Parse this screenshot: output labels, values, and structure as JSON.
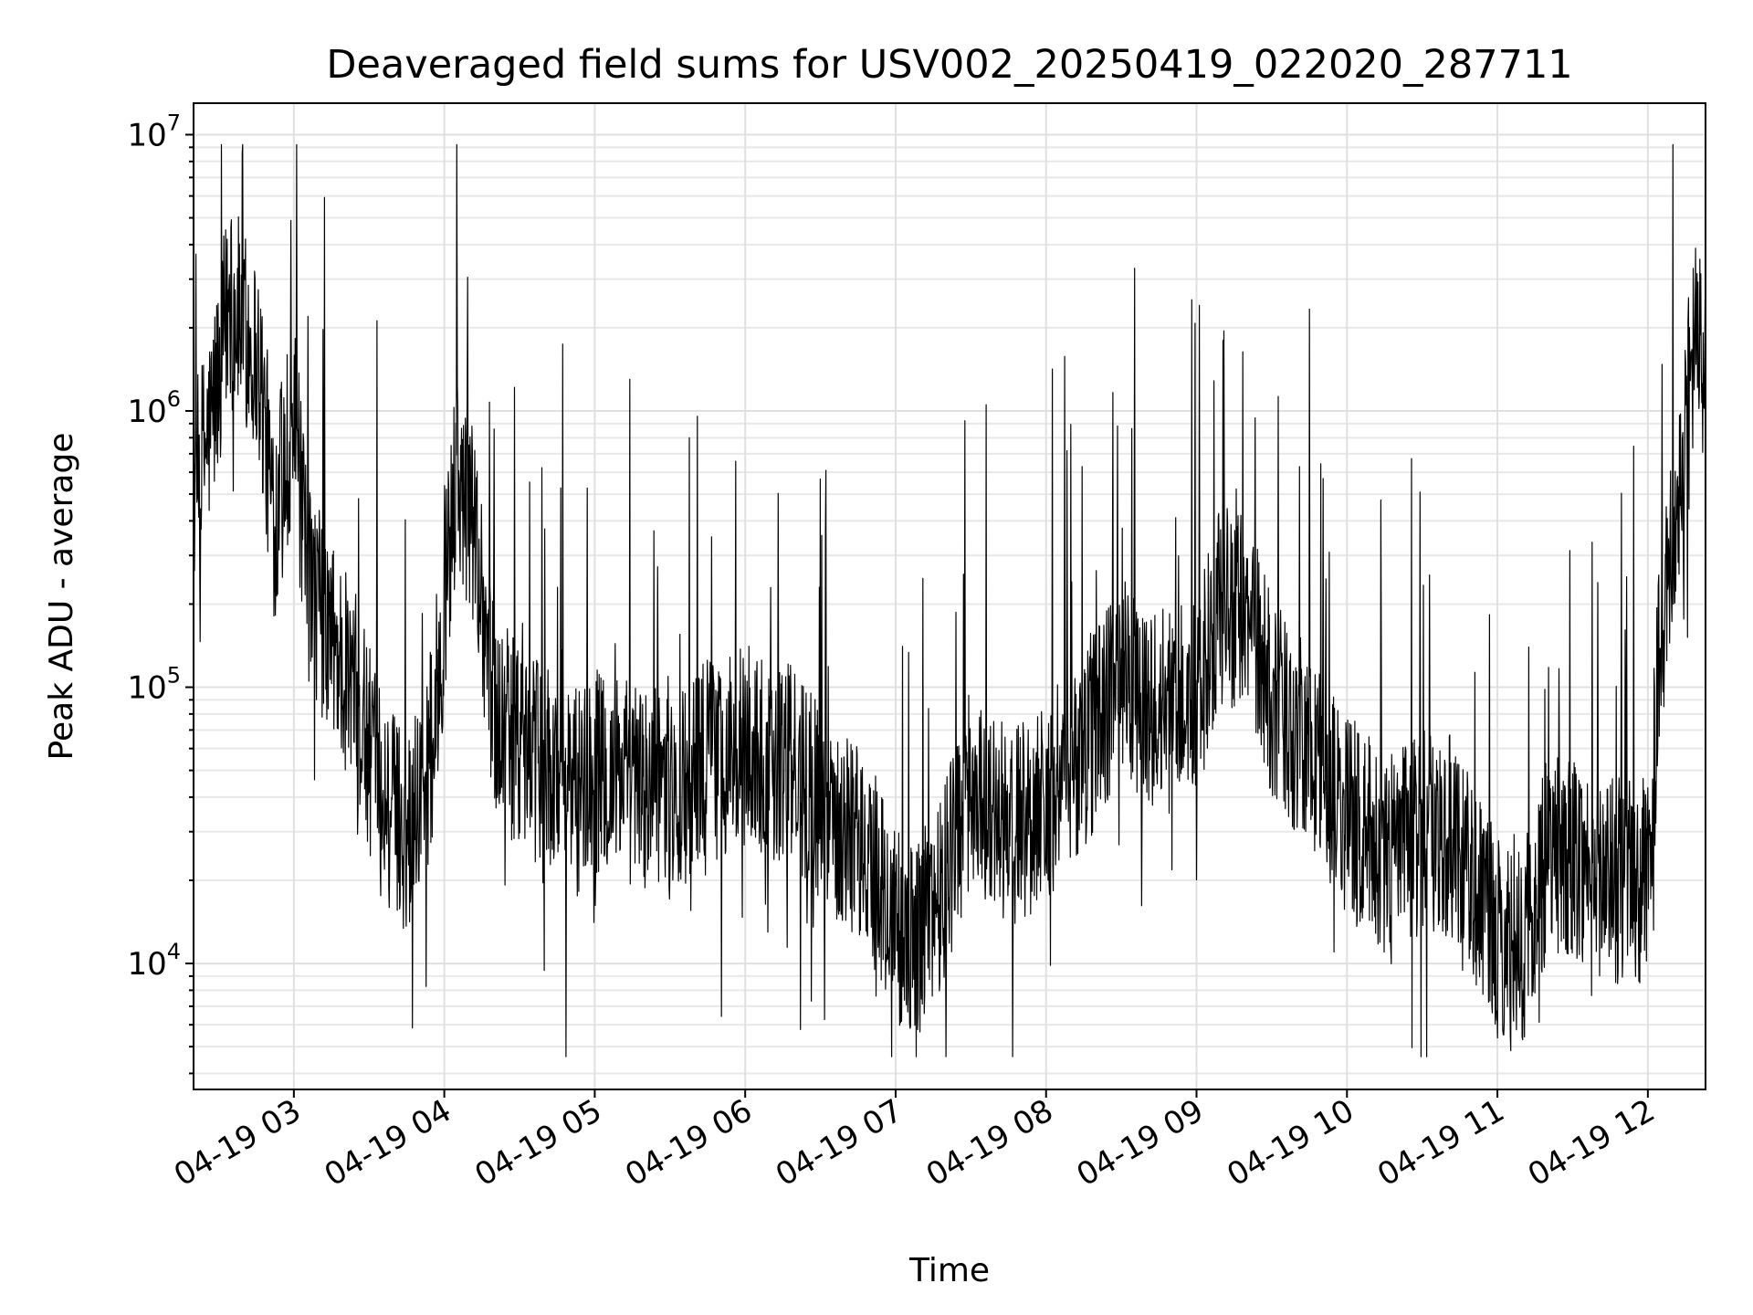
{
  "chart_data": {
    "type": "line",
    "title": "Deaveraged field sums for USV002_20250419_022020_287711",
    "xlabel": "Time",
    "ylabel": "Peak ADU - average",
    "yscale": "log",
    "ylim": [
      3500,
      13000000
    ],
    "xlim": [
      "2025-04-19 02:20",
      "2025-04-19 12:23"
    ],
    "grid": true,
    "grid_which": "both",
    "x_ticks": [
      "04-19 03",
      "04-19 04",
      "04-19 05",
      "04-19 06",
      "04-19 07",
      "04-19 08",
      "04-19 09",
      "04-19 10",
      "04-19 11",
      "04-19 12"
    ],
    "y_ticks": [
      {
        "base": "10",
        "exp": "4",
        "value": 10000
      },
      {
        "base": "10",
        "exp": "5",
        "value": 100000
      },
      {
        "base": "10",
        "exp": "6",
        "value": 1000000
      },
      {
        "base": "10",
        "exp": "7",
        "value": 10000000
      }
    ],
    "series": [
      {
        "color": "#000000",
        "x": [
          "2025-04-19 02:20",
          "2025-04-19 02:27",
          "2025-04-19 02:34",
          "2025-04-19 02:40",
          "2025-04-19 02:46",
          "2025-04-19 02:52",
          "2025-04-19 03:00",
          "2025-04-19 03:05",
          "2025-04-19 03:15",
          "2025-04-19 03:25",
          "2025-04-19 03:35",
          "2025-04-19 03:45",
          "2025-04-19 03:55",
          "2025-04-19 04:05",
          "2025-04-19 04:12",
          "2025-04-19 04:20",
          "2025-04-19 04:30",
          "2025-04-19 04:40",
          "2025-04-19 04:50",
          "2025-04-19 05:00",
          "2025-04-19 05:15",
          "2025-04-19 05:30",
          "2025-04-19 05:45",
          "2025-04-19 06:00",
          "2025-04-19 06:15",
          "2025-04-19 06:30",
          "2025-04-19 06:45",
          "2025-04-19 07:00",
          "2025-04-19 07:10",
          "2025-04-19 07:20",
          "2025-04-19 07:30",
          "2025-04-19 07:45",
          "2025-04-19 08:00",
          "2025-04-19 08:15",
          "2025-04-19 08:30",
          "2025-04-19 08:45",
          "2025-04-19 09:00",
          "2025-04-19 09:10",
          "2025-04-19 09:20",
          "2025-04-19 09:30",
          "2025-04-19 09:45",
          "2025-04-19 10:00",
          "2025-04-19 10:15",
          "2025-04-19 10:30",
          "2025-04-19 10:45",
          "2025-04-19 11:00",
          "2025-04-19 11:10",
          "2025-04-19 11:20",
          "2025-04-19 11:30",
          "2025-04-19 11:45",
          "2025-04-19 12:00",
          "2025-04-19 12:05",
          "2025-04-19 12:10",
          "2025-04-19 12:15",
          "2025-04-19 12:20",
          "2025-04-19 12:23"
        ],
        "values": [
          500000,
          900000,
          2500000,
          2000000,
          1500000,
          400000,
          1000000,
          250000,
          150000,
          90000,
          40000,
          30000,
          60000,
          600000,
          400000,
          80000,
          60000,
          50000,
          45000,
          50000,
          45000,
          40000,
          55000,
          60000,
          55000,
          40000,
          28000,
          14000,
          12000,
          22000,
          45000,
          30000,
          40000,
          60000,
          110000,
          80000,
          90000,
          200000,
          180000,
          90000,
          60000,
          35000,
          25000,
          30000,
          28000,
          12000,
          11000,
          25000,
          25000,
          20000,
          20000,
          150000,
          300000,
          900000,
          2000000,
          1200000
        ]
      }
    ]
  }
}
